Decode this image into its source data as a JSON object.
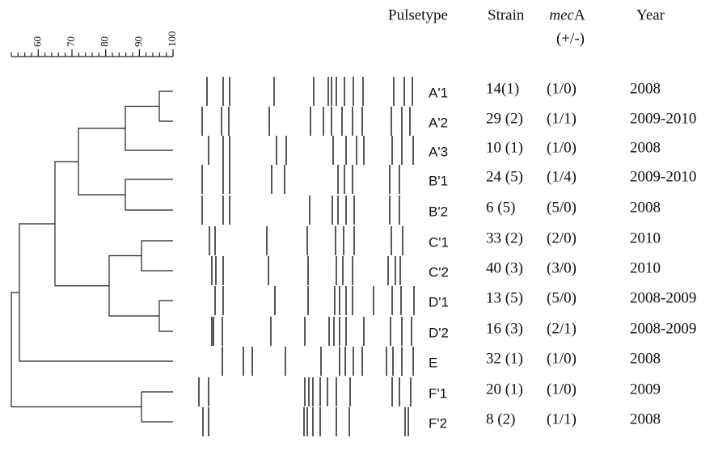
{
  "scale": {
    "lim": [
      52,
      100
    ],
    "ticks": [
      60,
      70,
      80,
      90,
      100
    ]
  },
  "headers": {
    "pulsetype": "Pulsetype",
    "strain": "Strain",
    "mec_italic": "mec",
    "mec_rest": "A",
    "mec_sign": "(+/-)",
    "year": "Year"
  },
  "rows": [
    {
      "pulsetype": "A'1",
      "strain": "14(1)",
      "meca": "(1/0)",
      "year": "2008"
    },
    {
      "pulsetype": "A'2",
      "strain": "29 (2)",
      "meca": "(1/1)",
      "year": "2009-2010"
    },
    {
      "pulsetype": "A'3",
      "strain": "10 (1)",
      "meca": "(1/0)",
      "year": "2008"
    },
    {
      "pulsetype": "B'1",
      "strain": "24 (5)",
      "meca": "(1/4)",
      "year": "2009-2010"
    },
    {
      "pulsetype": "B'2",
      "strain": "6 (5)",
      "meca": "(5/0)",
      "year": "2008"
    },
    {
      "pulsetype": "C'1",
      "strain": "33 (2)",
      "meca": "(2/0)",
      "year": "2010"
    },
    {
      "pulsetype": "C'2",
      "strain": "40 (3)",
      "meca": "(3/0)",
      "year": "2010"
    },
    {
      "pulsetype": "D'1",
      "strain": "13 (5)",
      "meca": "(5/0)",
      "year": "2008-2009"
    },
    {
      "pulsetype": "D'2",
      "strain": "16 (3)",
      "meca": "(2/1)",
      "year": "2008-2009"
    },
    {
      "pulsetype": "E",
      "strain": "32 (1)",
      "meca": "(1/0)",
      "year": "2008"
    },
    {
      "pulsetype": "F'1",
      "strain": "20 (1)",
      "meca": "(1/0)",
      "year": "2009"
    },
    {
      "pulsetype": "F'2",
      "strain": "8 (2)",
      "meca": "(1/1)",
      "year": "2008"
    }
  ]
}
